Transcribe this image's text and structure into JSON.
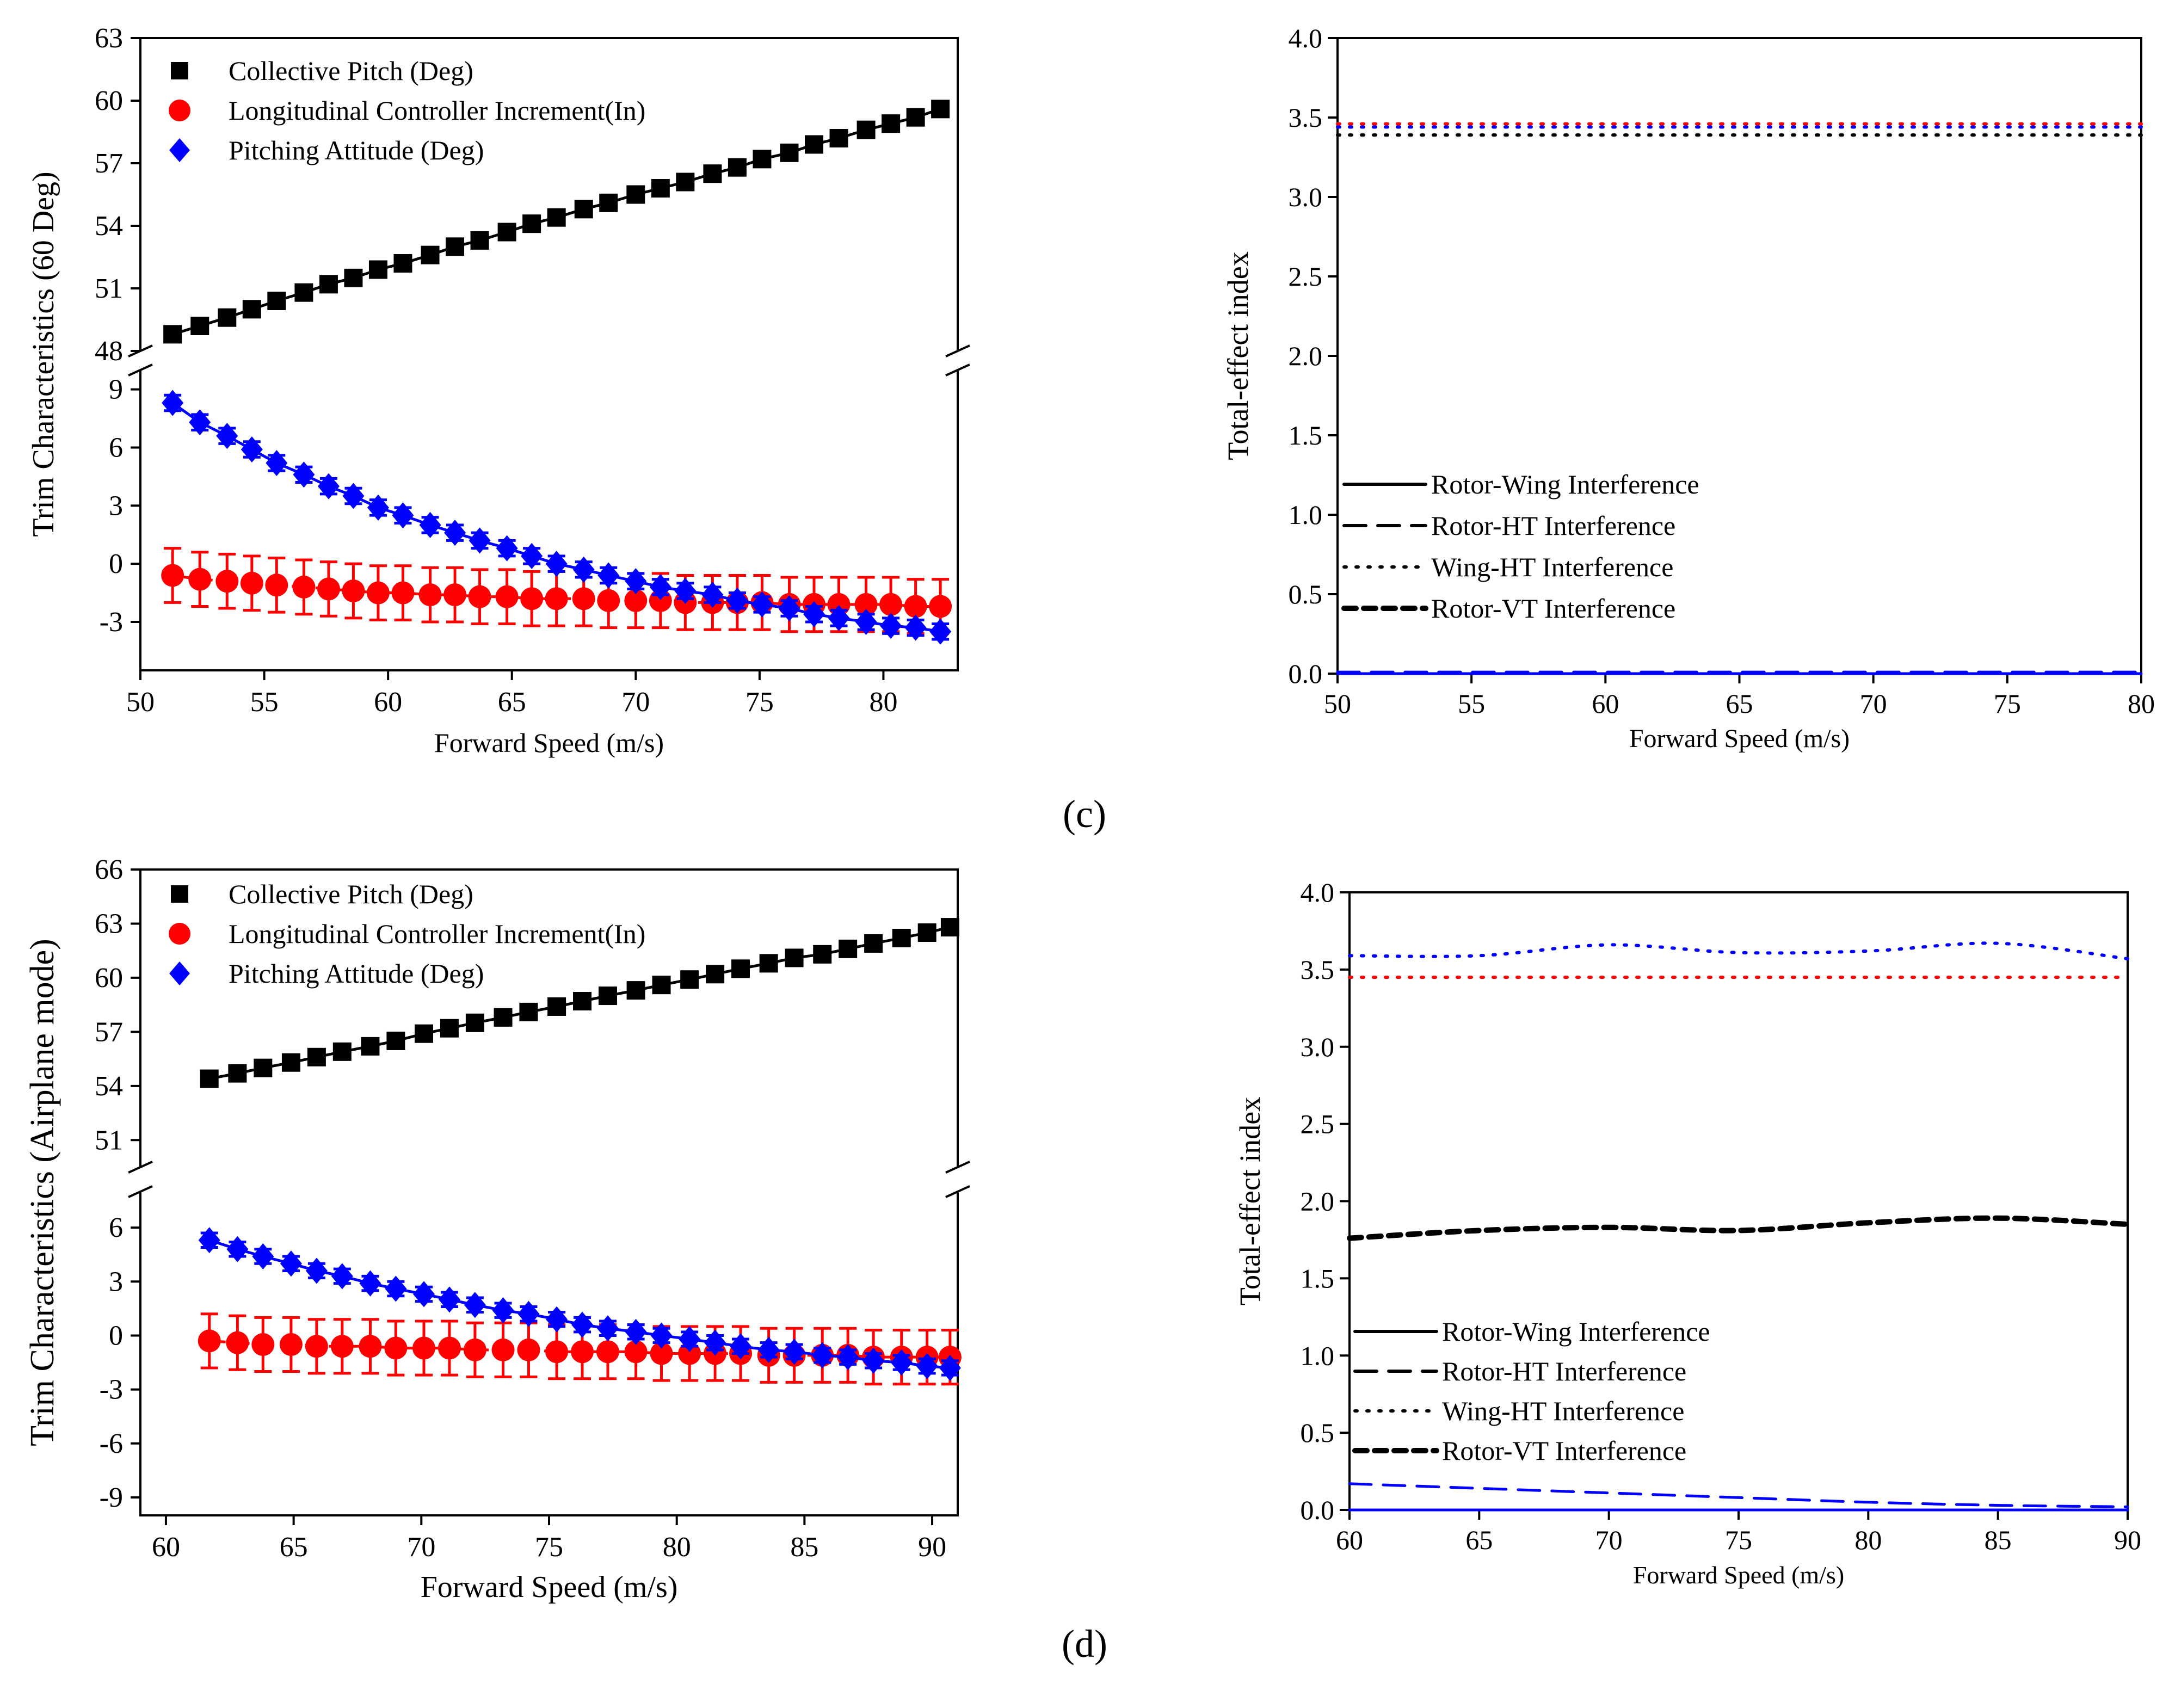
{
  "figure": {
    "label_c": "(c)",
    "label_d": "(d)"
  },
  "chart_data": [
    {
      "id": "c_trim",
      "type": "scatter",
      "ylabel": "Trim Characteristics (60 Deg)",
      "xlabel": "Forward Speed (m/s)",
      "xlim": [
        50,
        83
      ],
      "xticks": [
        50,
        55,
        60,
        65,
        70,
        75,
        80
      ],
      "broken_axis": true,
      "upper_ylim": [
        48,
        63
      ],
      "upper_yticks": [
        48,
        51,
        54,
        57,
        60,
        63
      ],
      "lower_ylim": [
        -5.5,
        10
      ],
      "lower_yticks": [
        -3,
        0,
        3,
        6,
        9
      ],
      "legend": [
        {
          "label": "Collective Pitch (Deg)",
          "marker": "square",
          "color": "#000000"
        },
        {
          "label": "Longitudinal Controller Increment(In)",
          "marker": "circle",
          "color": "#ff0000"
        },
        {
          "label": "Pitching Attitude (Deg)",
          "marker": "diamond",
          "color": "#0000ff"
        }
      ],
      "x": [
        51.3,
        52.4,
        53.5,
        54.5,
        55.5,
        56.6,
        57.6,
        58.6,
        59.6,
        60.6,
        61.7,
        62.7,
        63.7,
        64.8,
        65.8,
        66.8,
        67.9,
        68.9,
        70.0,
        71.0,
        72.0,
        73.1,
        74.1,
        75.1,
        76.2,
        77.2,
        78.2,
        79.3,
        80.3,
        81.3,
        82.3
      ],
      "series": [
        {
          "name": "Collective Pitch (Deg)",
          "segment": "upper",
          "err": 0.3,
          "values": [
            48.8,
            49.2,
            49.6,
            50.0,
            50.4,
            50.8,
            51.2,
            51.5,
            51.9,
            52.2,
            52.6,
            53.0,
            53.3,
            53.7,
            54.1,
            54.4,
            54.8,
            55.1,
            55.5,
            55.8,
            56.1,
            56.5,
            56.8,
            57.2,
            57.5,
            57.9,
            58.2,
            58.6,
            58.9,
            59.2,
            59.6
          ]
        },
        {
          "name": "Longitudinal Controller Increment(In)",
          "segment": "lower",
          "err": 1.4,
          "values": [
            -0.6,
            -0.8,
            -0.9,
            -1.0,
            -1.1,
            -1.2,
            -1.3,
            -1.4,
            -1.5,
            -1.5,
            -1.6,
            -1.6,
            -1.7,
            -1.7,
            -1.8,
            -1.8,
            -1.8,
            -1.9,
            -1.9,
            -1.9,
            -2.0,
            -2.0,
            -2.0,
            -2.0,
            -2.1,
            -2.1,
            -2.1,
            -2.1,
            -2.1,
            -2.2,
            -2.2
          ]
        },
        {
          "name": "Pitching Attitude (Deg)",
          "segment": "lower",
          "err": 0.4,
          "values": [
            8.3,
            7.3,
            6.6,
            5.9,
            5.2,
            4.6,
            4.0,
            3.5,
            2.9,
            2.5,
            2.0,
            1.6,
            1.2,
            0.8,
            0.4,
            0.0,
            -0.3,
            -0.6,
            -0.9,
            -1.2,
            -1.4,
            -1.6,
            -1.9,
            -2.1,
            -2.3,
            -2.6,
            -2.8,
            -3.0,
            -3.2,
            -3.3,
            -3.5
          ]
        }
      ]
    },
    {
      "id": "c_index",
      "type": "line",
      "ylabel": "Total-effect index",
      "xlabel": "Forward Speed (m/s)",
      "xlim": [
        50,
        80
      ],
      "xticks": [
        50,
        55,
        60,
        65,
        70,
        75,
        80
      ],
      "ylim": [
        0,
        4.0
      ],
      "yticks": [
        0.0,
        0.5,
        1.0,
        1.5,
        2.0,
        2.5,
        3.0,
        3.5,
        4.0
      ],
      "legend": [
        {
          "label": "Rotor-Wing Interference",
          "style": "solid"
        },
        {
          "label": "Rotor-HT Interference",
          "style": "dash"
        },
        {
          "label": "Wing-HT Interference",
          "style": "dot"
        },
        {
          "label": "Rotor-VT Interference",
          "style": "shortdash"
        }
      ],
      "series": [
        {
          "name": "red dotted",
          "color": "#ff0000",
          "style": "dot",
          "x": [
            50,
            80
          ],
          "values": [
            3.46,
            3.46
          ]
        },
        {
          "name": "blue dotted",
          "color": "#0000ff",
          "style": "dot",
          "x": [
            50,
            80
          ],
          "values": [
            3.44,
            3.44
          ]
        },
        {
          "name": "black dotted",
          "color": "#000000",
          "style": "dot",
          "x": [
            50,
            80
          ],
          "values": [
            3.39,
            3.39
          ]
        },
        {
          "name": "blue dashed",
          "color": "#0000ff",
          "style": "dash",
          "x": [
            50,
            80
          ],
          "values": [
            0.01,
            0.01
          ]
        },
        {
          "name": "blue solid",
          "color": "#0000ff",
          "style": "solid",
          "x": [
            50,
            80
          ],
          "values": [
            0.0,
            0.0
          ]
        }
      ]
    },
    {
      "id": "d_trim",
      "type": "scatter",
      "ylabel": "Trim Characteristics (Airplane mode)",
      "xlabel": "Forward Speed (m/s)",
      "xlim": [
        59,
        91
      ],
      "xticks": [
        60,
        65,
        70,
        75,
        80,
        85,
        90
      ],
      "broken_axis": true,
      "upper_ylim": [
        49.5,
        66
      ],
      "upper_yticks": [
        51,
        54,
        57,
        60,
        63,
        66
      ],
      "lower_ylim": [
        -10,
        8
      ],
      "lower_yticks": [
        -9,
        -6,
        -3,
        0,
        3,
        6
      ],
      "legend": [
        {
          "label": "Collective Pitch (Deg)",
          "marker": "square",
          "color": "#000000"
        },
        {
          "label": "Longitudinal Controller Increment(In)",
          "marker": "circle",
          "color": "#ff0000"
        },
        {
          "label": "Pitching Attitude (Deg)",
          "marker": "diamond",
          "color": "#0000ff"
        }
      ],
      "x": [
        61.7,
        62.8,
        63.8,
        64.9,
        65.9,
        66.9,
        68.0,
        69.0,
        70.1,
        71.1,
        72.1,
        73.2,
        74.2,
        75.3,
        76.3,
        77.3,
        78.4,
        79.4,
        80.5,
        81.5,
        82.5,
        83.6,
        84.6,
        85.7,
        86.7,
        87.7,
        88.8,
        89.8,
        90.7
      ],
      "series": [
        {
          "name": "Collective Pitch (Deg)",
          "segment": "upper",
          "err": 0.3,
          "values": [
            54.4,
            54.7,
            55.0,
            55.3,
            55.6,
            55.9,
            56.2,
            56.5,
            56.9,
            57.2,
            57.5,
            57.8,
            58.1,
            58.4,
            58.7,
            59.0,
            59.3,
            59.6,
            59.9,
            60.2,
            60.5,
            60.8,
            61.1,
            61.3,
            61.6,
            61.9,
            62.2,
            62.5,
            62.8
          ]
        },
        {
          "name": "Longitudinal Controller Increment(In)",
          "segment": "lower",
          "err": 1.5,
          "values": [
            -0.3,
            -0.4,
            -0.5,
            -0.5,
            -0.6,
            -0.6,
            -0.6,
            -0.7,
            -0.7,
            -0.7,
            -0.8,
            -0.8,
            -0.8,
            -0.9,
            -0.9,
            -0.9,
            -0.9,
            -1.0,
            -1.0,
            -1.0,
            -1.0,
            -1.1,
            -1.1,
            -1.1,
            -1.1,
            -1.2,
            -1.2,
            -1.2,
            -1.2
          ]
        },
        {
          "name": "Pitching Attitude (Deg)",
          "segment": "lower",
          "err": 0.4,
          "values": [
            5.3,
            4.8,
            4.4,
            4.0,
            3.6,
            3.3,
            2.9,
            2.6,
            2.3,
            2.0,
            1.7,
            1.4,
            1.2,
            0.9,
            0.6,
            0.4,
            0.2,
            0.0,
            -0.2,
            -0.4,
            -0.6,
            -0.8,
            -0.9,
            -1.1,
            -1.2,
            -1.4,
            -1.5,
            -1.7,
            -1.8
          ]
        }
      ]
    },
    {
      "id": "d_index",
      "type": "line",
      "ylabel": "Total-effect index",
      "xlabel": "Forward Speed (m/s)",
      "xlim": [
        60,
        90
      ],
      "xticks": [
        60,
        65,
        70,
        75,
        80,
        85,
        90
      ],
      "ylim": [
        0,
        4.0
      ],
      "yticks": [
        0.0,
        0.5,
        1.0,
        1.5,
        2.0,
        2.5,
        3.0,
        3.5,
        4.0
      ],
      "legend": [
        {
          "label": "Rotor-Wing Interference",
          "style": "solid"
        },
        {
          "label": "Rotor-HT Interference",
          "style": "dash"
        },
        {
          "label": "Wing-HT Interference",
          "style": "dot"
        },
        {
          "label": "Rotor-VT Interference",
          "style": "shortdash"
        }
      ],
      "series": [
        {
          "name": "blue dotted",
          "color": "#0000ff",
          "style": "dot",
          "x": [
            60,
            65,
            70,
            75,
            80,
            85,
            90
          ],
          "values": [
            3.59,
            3.59,
            3.66,
            3.61,
            3.62,
            3.67,
            3.57
          ]
        },
        {
          "name": "red dotted",
          "color": "#ff0000",
          "style": "dot",
          "x": [
            60,
            90
          ],
          "values": [
            3.45,
            3.45
          ]
        },
        {
          "name": "black short-dashed",
          "color": "#000000",
          "style": "shortdash",
          "x": [
            60,
            65,
            70,
            75,
            80,
            85,
            90
          ],
          "values": [
            1.76,
            1.81,
            1.83,
            1.81,
            1.86,
            1.89,
            1.85
          ]
        },
        {
          "name": "blue dashed",
          "color": "#0000ff",
          "style": "dash",
          "x": [
            60,
            65,
            70,
            75,
            80,
            85,
            90
          ],
          "values": [
            0.17,
            0.14,
            0.11,
            0.08,
            0.05,
            0.03,
            0.02
          ]
        },
        {
          "name": "blue solid",
          "color": "#0000ff",
          "style": "solid",
          "x": [
            60,
            90
          ],
          "values": [
            0.0,
            0.0
          ]
        }
      ]
    }
  ]
}
